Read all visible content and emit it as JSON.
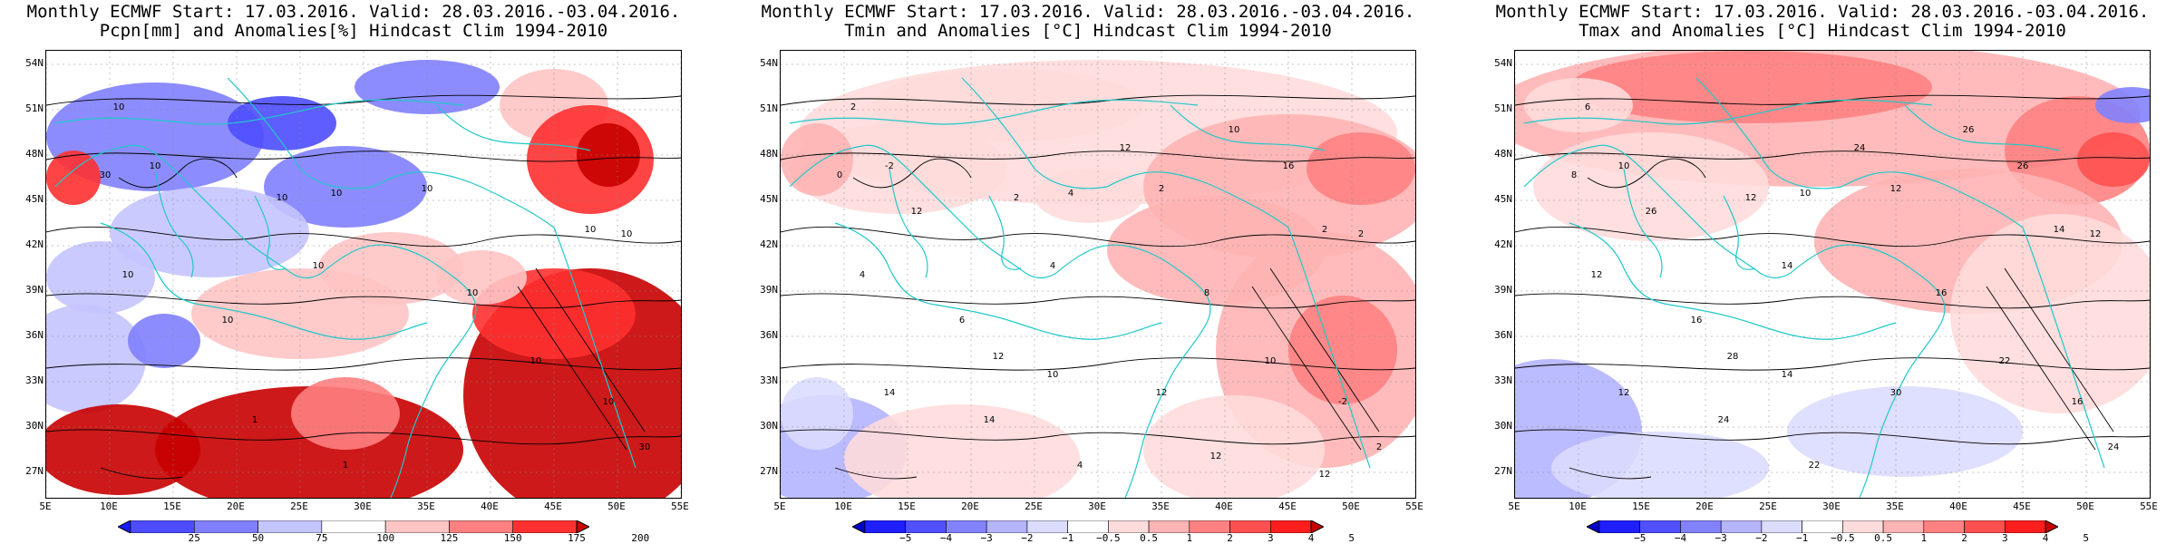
{
  "panels": [
    {
      "title1": "Monthly ECMWF Start: 17.03.2016. Valid: 28.03.2016.-03.04.2016.",
      "title2": "Pcpn[mm] and Anomalies[%] Hindcast Clim 1994-2010",
      "colorbar": {
        "labels": [
          "25",
          "50",
          "75",
          "100",
          "125",
          "150",
          "175",
          "200"
        ],
        "colors": [
          "#1a1aff",
          "#4d4dff",
          "#8080ff",
          "#c4c4ff",
          "#ffffff",
          "#ffc4c4",
          "#ff8080",
          "#ff3030",
          "#c80000"
        ]
      },
      "contour_labels": [
        "10",
        "10",
        "30",
        "10",
        "10",
        "10",
        "10",
        "10",
        "10",
        "10",
        "10",
        "10",
        "10",
        "1",
        "10",
        "1",
        "30"
      ]
    },
    {
      "title1": "Monthly ECMWF Start: 17.03.2016. Valid: 28.03.2016.-03.04.2016.",
      "title2": "Tmin and Anomalies [°C] Hindcast Clim 1994-2010",
      "colorbar": {
        "labels": [
          "−5",
          "−4",
          "−3",
          "−2",
          "−1",
          "−0.5",
          "0.5",
          "1",
          "2",
          "3",
          "4",
          "5"
        ],
        "colors": [
          "#0000c8",
          "#1e1eff",
          "#5050ff",
          "#8282ff",
          "#b4b4ff",
          "#dcdcff",
          "#ffffff",
          "#ffdcdc",
          "#ffb4b4",
          "#ff8282",
          "#ff5050",
          "#ff1e1e",
          "#c80000"
        ]
      },
      "contour_labels": [
        "2",
        "-2",
        "0",
        "2",
        "4",
        "2",
        "2",
        "2",
        "4",
        "4",
        "6",
        "8",
        "10",
        "14",
        "-2",
        "4",
        "2",
        "12",
        "12",
        "10",
        "16",
        "12",
        "12",
        "14",
        "10",
        "12",
        "12"
      ]
    },
    {
      "title1": "Monthly ECMWF Start: 17.03.2016. Valid: 28.03.2016.-03.04.2016.",
      "title2": "Tmax and Anomalies [°C] Hindcast Clim 1994-2010",
      "colorbar": {
        "labels": [
          "−5",
          "−4",
          "−3",
          "−2",
          "−1",
          "−0.5",
          "0.5",
          "1",
          "2",
          "3",
          "4",
          "5"
        ],
        "colors": [
          "#0000c8",
          "#1e1eff",
          "#5050ff",
          "#8282ff",
          "#b4b4ff",
          "#dcdcff",
          "#ffffff",
          "#ffdcdc",
          "#ffb4b4",
          "#ff8282",
          "#ff5050",
          "#ff1e1e",
          "#c80000"
        ]
      },
      "contour_labels": [
        "6",
        "10",
        "8",
        "12",
        "10",
        "12",
        "14",
        "12",
        "12",
        "14",
        "16",
        "16",
        "22",
        "24",
        "16",
        "22",
        "24",
        "26",
        "24",
        "26",
        "26",
        "28",
        "30",
        "12",
        "14"
      ]
    }
  ],
  "axes": {
    "lat_labels": [
      "54N",
      "51N",
      "48N",
      "45N",
      "42N",
      "39N",
      "36N",
      "33N",
      "30N",
      "27N"
    ],
    "lon_labels": [
      "5E",
      "10E",
      "15E",
      "20E",
      "25E",
      "30E",
      "35E",
      "40E",
      "45E",
      "50E",
      "55E"
    ]
  },
  "colors": {
    "coast": "#20c8c8",
    "contour": "#000000"
  }
}
